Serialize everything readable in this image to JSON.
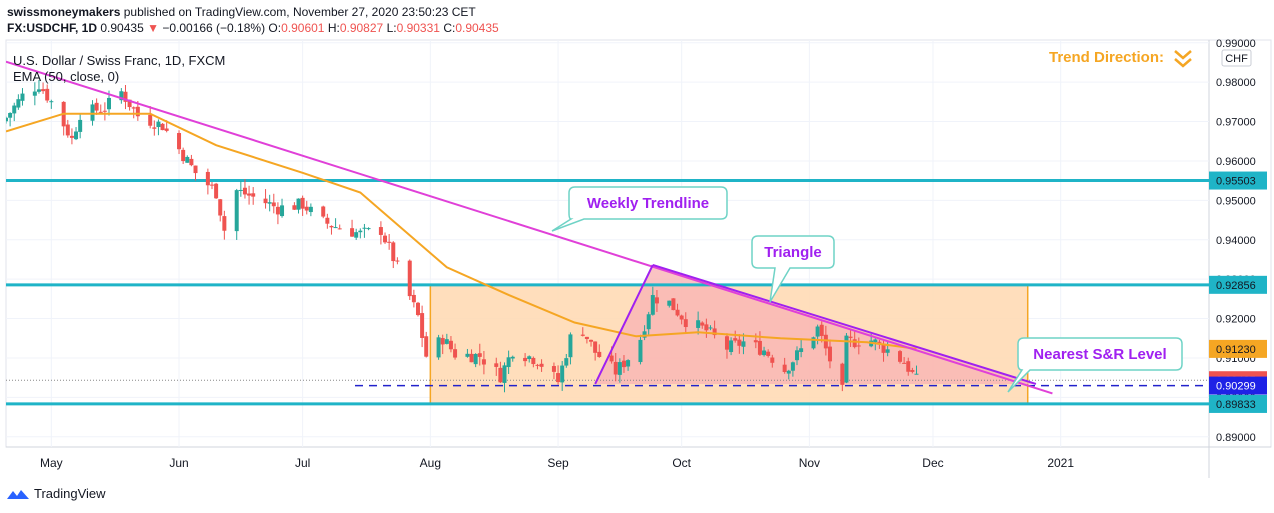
{
  "header": {
    "author": "swissmoneymakers",
    "published_text": "published on TradingView.com, November 27, 2020 23:50:23 CET",
    "symbol": "FX:USDCHF, 1D",
    "last": "0.90435",
    "arrow": "▼",
    "change": "−0.00166 (−0.18%)",
    "o_label": "O:",
    "o_value": "0.90601",
    "h_label": "H:",
    "h_value": "0.90827",
    "l_label": "L:",
    "l_value": "0.90331",
    "c_label": "C:",
    "c_value": "0.90435"
  },
  "legend": {
    "title": "U.S. Dollar / Swiss Franc, 1D, FXCM",
    "ema": "EMA (50, close, 0)"
  },
  "currency_label": "CHF",
  "trend_direction": "Trend Direction:",
  "footer": {
    "brand": "TradingView",
    "logo_icon": "tradingview-logo-icon"
  },
  "colors": {
    "up": "#26a69a",
    "down": "#ef5350",
    "ema": "#f5a623",
    "sr": "#1fb4c7",
    "trendline": "#e040d8",
    "triangle": "#a020f0",
    "annotation_text": "#a020f0",
    "annotation_border": "#6fd3c6",
    "box_fill": "#ffd8b0",
    "box_stroke": "#f5a623",
    "triangle_fill": "#f9b4b4",
    "dashed": "#2222cc",
    "orange_text": "#f5a623"
  },
  "annotations": [
    {
      "id": "weekly",
      "text": "Weekly Trendline"
    },
    {
      "id": "triangle",
      "text": "Triangle"
    },
    {
      "id": "sr",
      "text": "Nearest S&R Level"
    }
  ],
  "chart_data": {
    "type": "candlestick",
    "title": "U.S. Dollar / Swiss Franc, 1D, FXCM",
    "y_axis": {
      "ylim": [
        0.8874,
        0.9907
      ],
      "ticks": [
        "0.99000",
        "0.98000",
        "0.97000",
        "0.96000",
        "0.95000",
        "0.94000",
        "0.93000",
        "0.92000",
        "0.91000",
        "0.90000",
        "0.89000"
      ]
    },
    "x_axis": {
      "labels": [
        "May",
        "Jun",
        "Jul",
        "Aug",
        "Sep",
        "Oct",
        "Nov",
        "Dec",
        "2021"
      ]
    },
    "price_labels": [
      {
        "value": 0.95503,
        "text": "0.95503",
        "kind": "sr"
      },
      {
        "value": 0.92856,
        "text": "0.92856",
        "kind": "sr"
      },
      {
        "value": 0.9123,
        "text": "0.91230",
        "kind": "ema"
      },
      {
        "value": 0.90435,
        "text": "0.90435",
        "kind": "last"
      },
      {
        "value": 0.90299,
        "text": "0.90299",
        "kind": "support"
      },
      {
        "value": 0.89833,
        "text": "0.89833",
        "kind": "sr"
      }
    ],
    "horizontal_levels": [
      0.95503,
      0.92856,
      0.89833
    ],
    "dashed_level": 0.90299,
    "last_price": 0.90435,
    "close_path_keypoints": [
      {
        "date": "2020-04-20",
        "close": 0.971
      },
      {
        "date": "2020-04-24",
        "close": 0.9765
      },
      {
        "date": "2020-04-28",
        "close": 0.9795
      },
      {
        "date": "2020-05-01",
        "close": 0.975
      },
      {
        "date": "2020-05-06",
        "close": 0.9655
      },
      {
        "date": "2020-05-08",
        "close": 0.972
      },
      {
        "date": "2020-05-14",
        "close": 0.9735
      },
      {
        "date": "2020-05-18",
        "close": 0.9775
      },
      {
        "date": "2020-05-22",
        "close": 0.9715
      },
      {
        "date": "2020-05-28",
        "close": 0.969
      },
      {
        "date": "2020-06-02",
        "close": 0.9615
      },
      {
        "date": "2020-06-05",
        "close": 0.957
      },
      {
        "date": "2020-06-10",
        "close": 0.952
      },
      {
        "date": "2020-06-12",
        "close": 0.9425
      },
      {
        "date": "2020-06-15",
        "close": 0.9525
      },
      {
        "date": "2020-06-22",
        "close": 0.9495
      },
      {
        "date": "2020-06-25",
        "close": 0.948
      },
      {
        "date": "2020-07-01",
        "close": 0.949
      },
      {
        "date": "2020-07-06",
        "close": 0.9445
      },
      {
        "date": "2020-07-10",
        "close": 0.943
      },
      {
        "date": "2020-07-15",
        "close": 0.9415
      },
      {
        "date": "2020-07-20",
        "close": 0.9425
      },
      {
        "date": "2020-07-24",
        "close": 0.933
      },
      {
        "date": "2020-07-29",
        "close": 0.9205
      },
      {
        "date": "2020-07-31",
        "close": 0.9105
      },
      {
        "date": "2020-08-04",
        "close": 0.915
      },
      {
        "date": "2020-08-07",
        "close": 0.911
      },
      {
        "date": "2020-08-13",
        "close": 0.9105
      },
      {
        "date": "2020-08-18",
        "close": 0.9055
      },
      {
        "date": "2020-08-21",
        "close": 0.912
      },
      {
        "date": "2020-08-27",
        "close": 0.9095
      },
      {
        "date": "2020-09-01",
        "close": 0.904
      },
      {
        "date": "2020-09-04",
        "close": 0.915
      },
      {
        "date": "2020-09-07",
        "close": 0.917
      },
      {
        "date": "2020-09-10",
        "close": 0.9115
      },
      {
        "date": "2020-09-15",
        "close": 0.9065
      },
      {
        "date": "2020-09-18",
        "close": 0.91
      },
      {
        "date": "2020-09-21",
        "close": 0.915
      },
      {
        "date": "2020-09-24",
        "close": 0.9255
      },
      {
        "date": "2020-09-28",
        "close": 0.924
      },
      {
        "date": "2020-10-02",
        "close": 0.9195
      },
      {
        "date": "2020-10-07",
        "close": 0.917
      },
      {
        "date": "2020-10-12",
        "close": 0.9125
      },
      {
        "date": "2020-10-16",
        "close": 0.914
      },
      {
        "date": "2020-10-21",
        "close": 0.912
      },
      {
        "date": "2020-10-26",
        "close": 0.907
      },
      {
        "date": "2020-10-30",
        "close": 0.912
      },
      {
        "date": "2020-11-03",
        "close": 0.9175
      },
      {
        "date": "2020-11-06",
        "close": 0.9095
      },
      {
        "date": "2020-11-09",
        "close": 0.9015
      },
      {
        "date": "2020-11-10",
        "close": 0.914
      },
      {
        "date": "2020-11-16",
        "close": 0.9145
      },
      {
        "date": "2020-11-20",
        "close": 0.912
      },
      {
        "date": "2020-11-24",
        "close": 0.909
      },
      {
        "date": "2020-11-27",
        "close": 0.90435
      }
    ],
    "ema_keypoints": [
      {
        "date": "2020-04-20",
        "value": 0.9675
      },
      {
        "date": "2020-05-04",
        "value": 0.972
      },
      {
        "date": "2020-05-25",
        "value": 0.972
      },
      {
        "date": "2020-06-10",
        "value": 0.964
      },
      {
        "date": "2020-07-01",
        "value": 0.957
      },
      {
        "date": "2020-07-15",
        "value": 0.952
      },
      {
        "date": "2020-08-05",
        "value": 0.933
      },
      {
        "date": "2020-08-20",
        "value": 0.926
      },
      {
        "date": "2020-09-05",
        "value": 0.919
      },
      {
        "date": "2020-09-20",
        "value": 0.9155
      },
      {
        "date": "2020-10-05",
        "value": 0.9165
      },
      {
        "date": "2020-10-25",
        "value": 0.915
      },
      {
        "date": "2020-11-15",
        "value": 0.914
      },
      {
        "date": "2020-11-27",
        "value": 0.9123
      }
    ],
    "lines": [
      {
        "name": "weekly-trendline",
        "from": {
          "date": "2020-04-20",
          "price": 0.9852
        },
        "to": {
          "date": "2020-12-30",
          "price": 0.901
        }
      },
      {
        "name": "triangle-upper",
        "from": {
          "date": "2020-09-24",
          "price": 0.9336
        },
        "to": {
          "date": "2020-12-26",
          "price": 0.9034
        }
      },
      {
        "name": "triangle-lower",
        "from": {
          "date": "2020-09-10",
          "price": 0.9034
        },
        "to": {
          "date": "2020-09-24",
          "price": 0.9336
        }
      }
    ],
    "box": {
      "from": "2020-08-01",
      "to": "2020-12-24",
      "top": 0.92856,
      "bottom": 0.89833
    }
  }
}
